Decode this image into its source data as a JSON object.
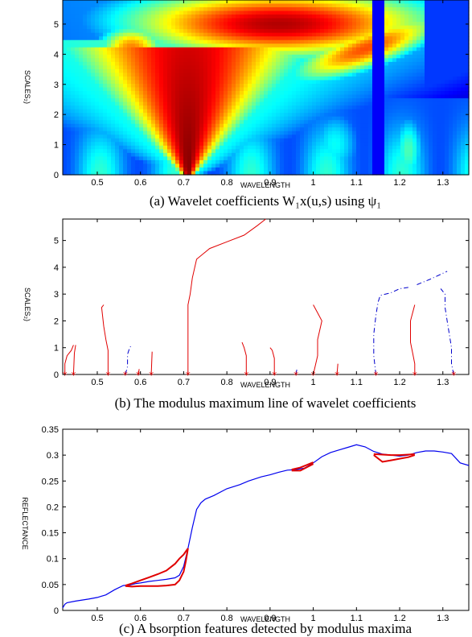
{
  "chart_data": [
    {
      "type": "heatmap",
      "caption": "(a) Wavelet coefficients W₁x(u,s) using ψ₁",
      "xlabel": "WAVELENGTH",
      "ylabel": "SCALES₂)",
      "xlim": [
        0.42,
        1.36
      ],
      "ylim": [
        0,
        5.8
      ],
      "xticks": [
        "0.5",
        "0.6",
        "0.7",
        "0.8",
        "0.9",
        "1",
        "1.1",
        "1.2",
        "1.3"
      ],
      "yticks": [
        "0",
        "1",
        "2",
        "3",
        "4",
        "5"
      ],
      "colormap": "jet",
      "ridges": [
        {
          "x": 0.71,
          "s_top": 0.0,
          "width": 0.035,
          "intensity": 0.98
        },
        {
          "x": 1.15,
          "s_top": 0.0,
          "width": 0.02,
          "intensity": 0.2
        }
      ]
    },
    {
      "type": "line",
      "caption": "(b) The modulus maximum line of wavelet coefficients",
      "xlabel": "WAVELENGTH",
      "ylabel": "SCALES₂)",
      "xlim": [
        0.42,
        1.36
      ],
      "ylim": [
        0,
        5.8
      ],
      "xticks": [
        "0.5",
        "0.6",
        "0.7",
        "0.8",
        "0.9",
        "1",
        "1.1",
        "1.2",
        "1.3"
      ],
      "yticks": [
        "0",
        "1",
        "2",
        "3",
        "4",
        "5"
      ],
      "maxima_points_x": [
        0.425,
        0.445,
        0.525,
        0.565,
        0.595,
        0.625,
        0.71,
        0.845,
        0.91,
        0.96,
        1.0,
        1.055,
        1.145,
        1.235,
        1.325
      ],
      "series": [
        {
          "style": "solid",
          "color": "#e00000",
          "points": [
            [
              0.425,
              0
            ],
            [
              0.425,
              0.4
            ],
            [
              0.43,
              0.7
            ],
            [
              0.44,
              0.9
            ],
            [
              0.445,
              1.1
            ]
          ]
        },
        {
          "style": "solid",
          "color": "#e00000",
          "points": [
            [
              0.445,
              0
            ],
            [
              0.447,
              0.8
            ],
            [
              0.45,
              1.1
            ]
          ]
        },
        {
          "style": "solid",
          "color": "#e00000",
          "points": [
            [
              0.525,
              0
            ],
            [
              0.525,
              0.9
            ],
            [
              0.52,
              1.3
            ],
            [
              0.515,
              1.8
            ],
            [
              0.51,
              2.5
            ],
            [
              0.515,
              2.6
            ]
          ]
        },
        {
          "style": "dash",
          "color": "#0000cc",
          "points": [
            [
              0.565,
              0
            ],
            [
              0.57,
              0.3
            ],
            [
              0.57,
              0.75
            ],
            [
              0.575,
              1.0
            ],
            [
              0.58,
              1.1
            ]
          ]
        },
        {
          "style": "solid",
          "color": "#e00000",
          "points": [
            [
              0.595,
              0
            ],
            [
              0.597,
              0.2
            ]
          ]
        },
        {
          "style": "solid",
          "color": "#e00000",
          "points": [
            [
              0.625,
              0
            ],
            [
              0.627,
              0.85
            ]
          ]
        },
        {
          "style": "solid",
          "color": "#e00000",
          "points": [
            [
              0.71,
              0
            ],
            [
              0.71,
              2.6
            ],
            [
              0.715,
              3.0
            ],
            [
              0.72,
              3.6
            ],
            [
              0.73,
              4.3
            ],
            [
              0.76,
              4.7
            ],
            [
              0.8,
              4.95
            ],
            [
              0.84,
              5.2
            ],
            [
              0.87,
              5.55
            ],
            [
              0.89,
              5.8
            ]
          ]
        },
        {
          "style": "solid",
          "color": "#e00000",
          "points": [
            [
              0.845,
              0
            ],
            [
              0.845,
              0.7
            ],
            [
              0.84,
              1.0
            ],
            [
              0.835,
              1.2
            ]
          ]
        },
        {
          "style": "solid",
          "color": "#e00000",
          "points": [
            [
              0.91,
              0
            ],
            [
              0.91,
              0.6
            ],
            [
              0.905,
              0.9
            ],
            [
              0.9,
              1.0
            ]
          ]
        },
        {
          "style": "dash",
          "color": "#0000cc",
          "points": [
            [
              0.96,
              0
            ],
            [
              0.962,
              0.2
            ]
          ]
        },
        {
          "style": "solid",
          "color": "#e00000",
          "points": [
            [
              1.0,
              0
            ],
            [
              1.01,
              0.7
            ],
            [
              1.01,
              1.3
            ],
            [
              1.02,
              2.0
            ],
            [
              1.01,
              2.3
            ],
            [
              1.0,
              2.6
            ]
          ]
        },
        {
          "style": "solid",
          "color": "#e00000",
          "points": [
            [
              1.055,
              0
            ],
            [
              1.057,
              0.4
            ]
          ]
        },
        {
          "style": "dash",
          "color": "#0000cc",
          "points": [
            [
              1.145,
              0
            ],
            [
              1.14,
              0.7
            ],
            [
              1.14,
              1.5
            ],
            [
              1.145,
              2.2
            ],
            [
              1.15,
              2.7
            ],
            [
              1.155,
              2.95
            ],
            [
              1.18,
              3.05
            ],
            [
              1.2,
              3.2
            ],
            [
              1.22,
              3.25
            ]
          ]
        },
        {
          "style": "solid",
          "color": "#e00000",
          "points": [
            [
              1.235,
              0
            ],
            [
              1.235,
              0.4
            ],
            [
              1.23,
              0.8
            ],
            [
              1.225,
              1.2
            ],
            [
              1.225,
              2.0
            ],
            [
              1.235,
              2.6
            ]
          ]
        },
        {
          "style": "dash",
          "color": "#0000cc",
          "points": [
            [
              1.24,
              3.35
            ],
            [
              1.27,
              3.55
            ],
            [
              1.31,
              3.85
            ]
          ]
        },
        {
          "style": "dash",
          "color": "#0000cc",
          "points": [
            [
              1.325,
              0
            ],
            [
              1.32,
              0.4
            ],
            [
              1.32,
              1.0
            ],
            [
              1.315,
              1.5
            ],
            [
              1.31,
              2.0
            ],
            [
              1.305,
              2.5
            ],
            [
              1.305,
              3.0
            ],
            [
              1.295,
              3.2
            ]
          ]
        }
      ]
    },
    {
      "type": "line",
      "caption": "(c) A bsorption features detected by modulus maxima",
      "xlabel": "WAVELENGTH",
      "ylabel": "REFLECTANCE",
      "xlim": [
        0.42,
        1.36
      ],
      "ylim": [
        0,
        0.35
      ],
      "xticks": [
        "0.5",
        "0.6",
        "0.7",
        "0.8",
        "0.9",
        "1",
        "1.1",
        "1.2",
        "1.3"
      ],
      "yticks": [
        "0",
        "0.05",
        "0.1",
        "0.15",
        "0.2",
        "0.25",
        "0.3",
        "0.35"
      ],
      "spectrum": {
        "color": "#0000ee",
        "x": [
          0.42,
          0.425,
          0.43,
          0.45,
          0.48,
          0.5,
          0.52,
          0.54,
          0.56,
          0.575,
          0.59,
          0.6,
          0.62,
          0.64,
          0.66,
          0.68,
          0.69,
          0.7,
          0.71,
          0.72,
          0.73,
          0.74,
          0.75,
          0.77,
          0.8,
          0.83,
          0.85,
          0.88,
          0.9,
          0.92,
          0.94,
          0.96,
          0.98,
          1.0,
          1.02,
          1.04,
          1.06,
          1.08,
          1.1,
          1.12,
          1.14,
          1.16,
          1.18,
          1.2,
          1.22,
          1.24,
          1.26,
          1.28,
          1.3,
          1.32,
          1.34,
          1.36
        ],
        "y": [
          0.005,
          0.012,
          0.015,
          0.018,
          0.022,
          0.025,
          0.03,
          0.04,
          0.048,
          0.049,
          0.052,
          0.053,
          0.056,
          0.058,
          0.06,
          0.063,
          0.068,
          0.085,
          0.12,
          0.16,
          0.195,
          0.208,
          0.215,
          0.222,
          0.235,
          0.243,
          0.25,
          0.258,
          0.262,
          0.267,
          0.271,
          0.272,
          0.275,
          0.285,
          0.297,
          0.305,
          0.31,
          0.315,
          0.32,
          0.316,
          0.307,
          0.302,
          0.3,
          0.298,
          0.3,
          0.305,
          0.308,
          0.308,
          0.306,
          0.303,
          0.285,
          0.28
        ]
      },
      "features": [
        {
          "color": "#e00000",
          "x": [
            0.565,
            0.58,
            0.6,
            0.62,
            0.64,
            0.66,
            0.68,
            0.69,
            0.7,
            0.705,
            0.71
          ],
          "y_continuum": [
            0.048,
            0.052,
            0.058,
            0.064,
            0.07,
            0.077,
            0.09,
            0.1,
            0.108,
            0.114,
            0.12
          ],
          "y_curve": [
            0.047,
            0.046,
            0.047,
            0.047,
            0.047,
            0.048,
            0.05,
            0.058,
            0.075,
            0.095,
            0.12
          ]
        },
        {
          "color": "#e00000",
          "x": [
            0.95,
            0.97,
            1.0
          ],
          "y_continuum": [
            0.272,
            0.276,
            0.286
          ],
          "y_curve": [
            0.27,
            0.27,
            0.283
          ]
        },
        {
          "color": "#e00000",
          "x": [
            1.14,
            1.16,
            1.18,
            1.2,
            1.22,
            1.235
          ],
          "y_continuum": [
            0.302,
            0.301,
            0.3,
            0.3,
            0.301,
            0.302
          ],
          "y_curve": [
            0.3,
            0.287,
            0.29,
            0.293,
            0.296,
            0.3
          ]
        }
      ]
    }
  ]
}
